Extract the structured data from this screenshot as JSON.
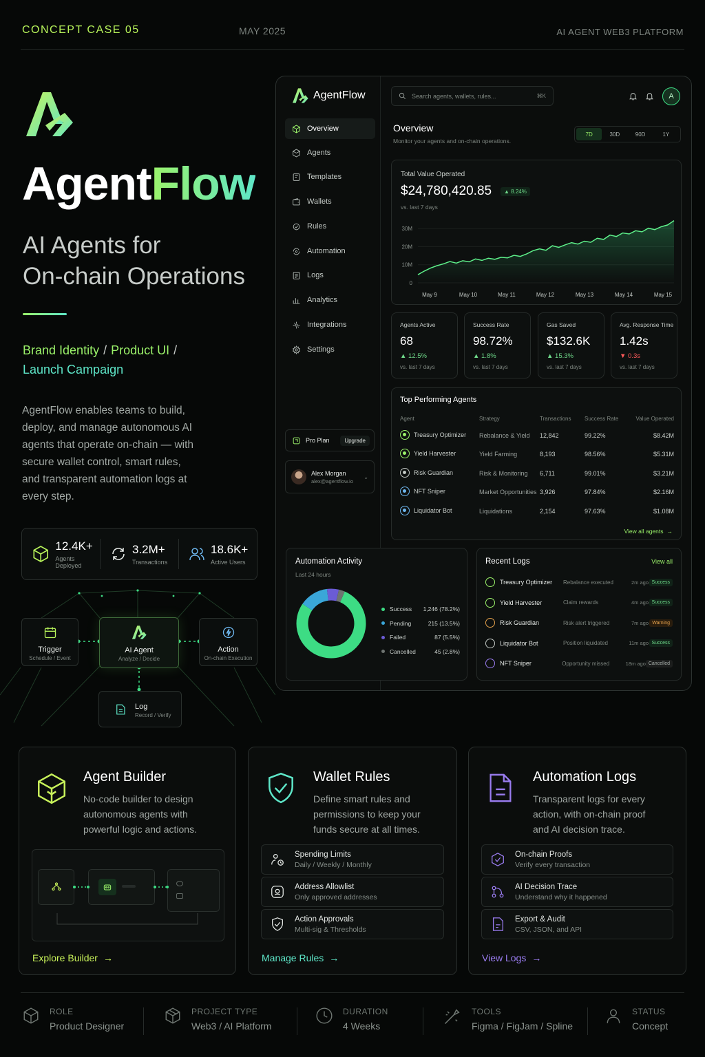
{
  "header": {
    "case": "CONCEPT CASE 05",
    "date": "MAY 2025",
    "platform": "AI AGENT WEB3 PLATFORM"
  },
  "brand": {
    "name_a": "Agent",
    "name_b": "Flow",
    "tagline_1": "AI Agents for",
    "tagline_2": "On-chain Operations",
    "service_1": "Brand Identity",
    "service_2": "Product UI",
    "service_3": "Launch Campaign",
    "sep": "/",
    "description": "AgentFlow enables teams to build, deploy, and manage autonomous AI agents that operate on-chain — with secure wallet control, smart rules, and transparent automation logs at every step."
  },
  "stats": [
    {
      "value": "12.4K+",
      "label": "Agents Deployed",
      "icon": "cube-icon"
    },
    {
      "value": "3.2M+",
      "label": "Transactions",
      "icon": "refresh-icon"
    },
    {
      "value": "18.6K+",
      "label": "Active Users",
      "icon": "users-icon"
    }
  ],
  "flow": {
    "trigger": {
      "title": "Trigger",
      "sub": "Schedule / Event"
    },
    "agent": {
      "title": "AI Agent",
      "sub": "Analyze / Decide"
    },
    "action": {
      "title": "Action",
      "sub": "On-chain Execution"
    },
    "log": {
      "title": "Log",
      "sub": "Record / Verify"
    }
  },
  "dashboard": {
    "logo": "AgentFlow",
    "search_placeholder": "Search agents, wallets, rules...",
    "search_shortcut": "⌘K",
    "avatar_letter": "A",
    "nav": [
      {
        "label": "Overview",
        "icon": "cube-icon"
      },
      {
        "label": "Agents",
        "icon": "box-icon"
      },
      {
        "label": "Templates",
        "icon": "template-icon"
      },
      {
        "label": "Wallets",
        "icon": "wallet-icon"
      },
      {
        "label": "Rules",
        "icon": "rules-icon"
      },
      {
        "label": "Automation",
        "icon": "automation-icon"
      },
      {
        "label": "Logs",
        "icon": "logs-icon"
      },
      {
        "label": "Analytics",
        "icon": "analytics-icon"
      },
      {
        "label": "Integrations",
        "icon": "integrations-icon"
      },
      {
        "label": "Settings",
        "icon": "gear-icon"
      }
    ],
    "plan": {
      "name": "Pro Plan",
      "upgrade": "Upgrade"
    },
    "user": {
      "name": "Alex Morgan",
      "email": "alex@agentflow.io"
    },
    "overview": {
      "title": "Overview",
      "subtitle": "Monitor your agents and on-chain operations.",
      "ranges": [
        "7D",
        "30D",
        "90D",
        "1Y"
      ],
      "active_range": "7D"
    },
    "tvo": {
      "label": "Total Value Operated",
      "value": "$24,780,420.85",
      "change": "▲ 8.24%",
      "sub": "vs. last 7 days"
    },
    "kpis": [
      {
        "label": "Agents Active",
        "value": "68",
        "change": "▲ 12.5%",
        "up": true,
        "sub": "vs. last 7 days"
      },
      {
        "label": "Success Rate",
        "value": "98.72%",
        "change": "▲ 1.8%",
        "up": true,
        "sub": "vs. last 7 days"
      },
      {
        "label": "Gas Saved",
        "value": "$132.6K",
        "change": "▲ 15.3%",
        "up": true,
        "sub": "vs. last 7 days"
      },
      {
        "label": "Avg. Response Time",
        "value": "1.42s",
        "change": "▼ 0.3s",
        "up": false,
        "sub": "vs. last 7 days"
      }
    ],
    "top_agents": {
      "title": "Top Performing Agents",
      "columns": [
        "Agent",
        "Strategy",
        "Transactions",
        "Success Rate",
        "Value Operated"
      ],
      "rows": [
        {
          "agent": "Treasury Optimizer",
          "strategy": "Rebalance & Yield",
          "tx": "12,842",
          "rate": "99.22%",
          "value": "$8.42M"
        },
        {
          "agent": "Yield Harvester",
          "strategy": "Yield Farming",
          "tx": "8,193",
          "rate": "98.56%",
          "value": "$5.31M"
        },
        {
          "agent": "Risk Guardian",
          "strategy": "Risk & Monitoring",
          "tx": "6,711",
          "rate": "99.01%",
          "value": "$3.21M"
        },
        {
          "agent": "NFT Sniper",
          "strategy": "Market Opportunities",
          "tx": "3,926",
          "rate": "97.84%",
          "value": "$2.16M"
        },
        {
          "agent": "Liquidator Bot",
          "strategy": "Liquidations",
          "tx": "2,154",
          "rate": "97.63%",
          "value": "$1.08M"
        }
      ],
      "view_all": "View all agents"
    },
    "automation": {
      "title": "Automation Activity",
      "sub": "Last 24 hours",
      "legend": [
        {
          "label": "Success",
          "value": "1,246 (78.2%)",
          "color": "#3ddc84"
        },
        {
          "label": "Pending",
          "value": "215 (13.5%)",
          "color": "#3aa6d8"
        },
        {
          "label": "Failed",
          "value": "87 (5.5%)",
          "color": "#6b5cd6"
        },
        {
          "label": "Cancelled",
          "value": "45 (2.8%)",
          "color": "#6e7471"
        }
      ]
    },
    "logs": {
      "title": "Recent Logs",
      "view_all": "View all",
      "rows": [
        {
          "agent": "Treasury Optimizer",
          "event": "Rebalance executed",
          "time": "2m ago",
          "status": "Success"
        },
        {
          "agent": "Yield Harvester",
          "event": "Claim rewards",
          "time": "4m ago",
          "status": "Success"
        },
        {
          "agent": "Risk Guardian",
          "event": "Risk alert triggered",
          "time": "7m ago",
          "status": "Warning"
        },
        {
          "agent": "Liquidator Bot",
          "event": "Position liquidated",
          "time": "11m ago",
          "status": "Success"
        },
        {
          "agent": "NFT Sniper",
          "event": "Opportunity missed",
          "time": "18m ago",
          "status": "Cancelled"
        }
      ]
    }
  },
  "chart_data": {
    "type": "area",
    "x": [
      "May 9",
      "May 10",
      "May 11",
      "May 12",
      "May 13",
      "May 14",
      "May 15"
    ],
    "yticks": [
      "0",
      "10M",
      "20M",
      "30M"
    ],
    "ylim": [
      0,
      35
    ],
    "points": [
      4.5,
      6.5,
      8.2,
      9.5,
      10.5,
      11.8,
      10.9,
      12.2,
      11.6,
      13.2,
      12.4,
      13.6,
      13.0,
      14.1,
      13.8,
      15.2,
      14.6,
      16.0,
      17.8,
      18.8,
      18.0,
      20.5,
      19.6,
      21.0,
      22.2,
      21.4,
      23.0,
      22.4,
      24.6,
      24.0,
      26.4,
      25.6,
      27.6,
      27.0,
      28.8,
      28.2,
      30.2,
      29.4,
      31.0,
      32.0,
      34.4
    ]
  },
  "features": [
    {
      "title": "Agent Builder",
      "desc": "No-code builder to design autonomous agents with powerful logic and actions.",
      "link": "Explore Builder",
      "icon": "cube-icon",
      "color": "#c8f25a",
      "rows": []
    },
    {
      "title": "Wallet Rules",
      "desc": "Define smart rules and permissions to keep your funds secure at all times.",
      "link": "Manage Rules",
      "icon": "shield-icon",
      "color": "#5ee6c8",
      "rows": [
        {
          "title": "Spending Limits",
          "sub": "Daily / Weekly / Monthly",
          "icon": "limits-icon"
        },
        {
          "title": "Address Allowlist",
          "sub": "Only approved addresses",
          "icon": "allowlist-icon"
        },
        {
          "title": "Action Approvals",
          "sub": "Multi-sig & Thresholds",
          "icon": "approval-icon"
        }
      ]
    },
    {
      "title": "Automation Logs",
      "desc": "Transparent logs for every action, with on-chain proof and AI decision trace.",
      "link": "View Logs",
      "icon": "document-icon",
      "color": "#9a7cf0",
      "rows": [
        {
          "title": "On-chain Proofs",
          "sub": "Verify every transaction",
          "icon": "proof-icon"
        },
        {
          "title": "AI Decision Trace",
          "sub": "Understand why it happened",
          "icon": "trace-icon"
        },
        {
          "title": "Export & Audit",
          "sub": "CSV, JSON, and API",
          "icon": "export-icon"
        }
      ]
    }
  ],
  "footer": [
    {
      "label": "ROLE",
      "value": "Product Designer",
      "icon": "cube-icon"
    },
    {
      "label": "PROJECT TYPE",
      "value": "Web3 / AI Platform",
      "icon": "box-icon"
    },
    {
      "label": "DURATION",
      "value": "4 Weeks",
      "icon": "clock-icon"
    },
    {
      "label": "TOOLS",
      "value": "Figma / FigJam / Spline",
      "icon": "tools-icon"
    },
    {
      "label": "STATUS",
      "value": "Concept",
      "icon": "user-icon"
    }
  ]
}
